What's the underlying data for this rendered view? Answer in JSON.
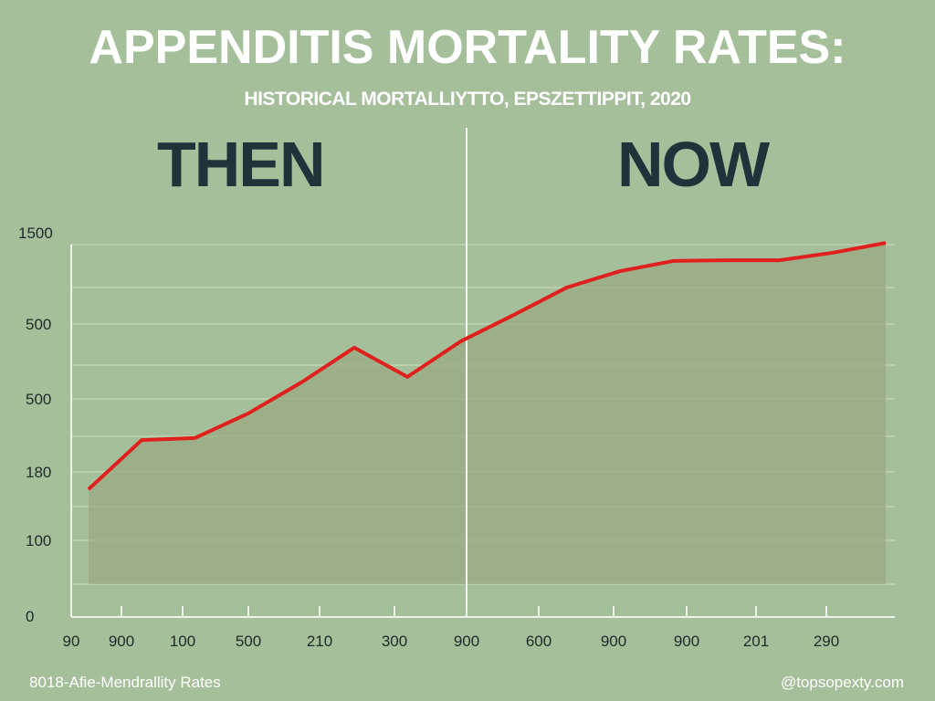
{
  "title": "APPENDITIS MORTALITY RATES:",
  "subtitle": "HISTORICAL MORTALLIYTTO, EPSZETTIPPIT, 2020",
  "sections": {
    "left": "THEN",
    "right": "NOW"
  },
  "footer": {
    "left": "8018-Afie-Mendrallity Rates",
    "right": "@topsopexty.com"
  },
  "colors": {
    "background": "#a6bf9b",
    "line": "#e0201c",
    "fill": "#9aa982",
    "heading": "#1f333a",
    "grid": "#c4d6b8"
  },
  "chart_data": {
    "type": "line",
    "title": "APPENDITIS MORTALITY RATES:",
    "subtitle": "HISTORICAL MORTALLIYTTO, EPSZETTIPPIT, 2020",
    "x_tick_labels": [
      "90",
      "900",
      "100",
      "500",
      "210",
      "300",
      "900",
      "600",
      "900",
      "900",
      "201",
      "290"
    ],
    "y_tick_labels": [
      "1500",
      "500",
      "500",
      "180",
      "100",
      "0"
    ],
    "ylim": [
      0,
      1500
    ],
    "grid": true,
    "area_fill": true,
    "series": [
      {
        "values": [
          512,
          711,
          719,
          818,
          943,
          1084,
          966,
          1109,
          1216,
          1327,
          1393,
          1434,
          1437,
          1437,
          1467,
          1507
        ]
      }
    ]
  }
}
